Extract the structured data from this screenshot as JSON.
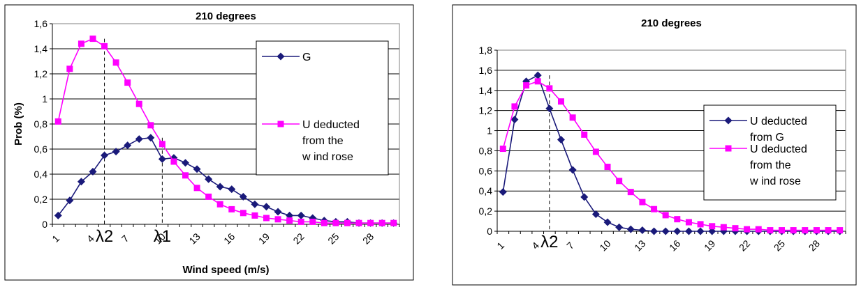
{
  "chart_data": [
    {
      "type": "line",
      "title": "210 degrees",
      "xlabel": "Wind speed (m/s)",
      "ylabel": "Prob (%)",
      "ylim": [
        0,
        1.6
      ],
      "y_ticks": [
        "0",
        "0,2",
        "0,4",
        "0,6",
        "0,8",
        "1",
        "1,2",
        "1,4",
        "1,6"
      ],
      "x_tick_labels": [
        "1",
        "4",
        "7",
        "10",
        "13",
        "16",
        "19",
        "22",
        "25",
        "28"
      ],
      "x_tick_values": [
        1,
        4,
        7,
        10,
        13,
        16,
        19,
        22,
        25,
        28
      ],
      "x": [
        1,
        2,
        3,
        4,
        5,
        6,
        7,
        8,
        9,
        10,
        11,
        12,
        13,
        14,
        15,
        16,
        17,
        18,
        19,
        20,
        21,
        22,
        23,
        24,
        25,
        26,
        27,
        28,
        29,
        30
      ],
      "grid": true,
      "legend_position": "right",
      "series": [
        {
          "name": "G",
          "color": "#1a1a7a",
          "marker": "diamond",
          "values": [
            0.07,
            0.19,
            0.34,
            0.42,
            0.55,
            0.58,
            0.63,
            0.68,
            0.69,
            0.52,
            0.53,
            0.49,
            0.44,
            0.36,
            0.3,
            0.28,
            0.22,
            0.16,
            0.14,
            0.1,
            0.07,
            0.07,
            0.05,
            0.03,
            0.02,
            0.02,
            0.01,
            0.01,
            0.01,
            0.01
          ]
        },
        {
          "name": "U deducted from the wind rose",
          "legend_lines": [
            "U deducted",
            "from the",
            "w ind rose"
          ],
          "color": "#ff00ff",
          "marker": "square",
          "values": [
            0.82,
            1.24,
            1.44,
            1.48,
            1.42,
            1.29,
            1.13,
            0.96,
            0.79,
            0.64,
            0.5,
            0.39,
            0.29,
            0.22,
            0.16,
            0.12,
            0.09,
            0.07,
            0.05,
            0.04,
            0.03,
            0.02,
            0.02,
            0.01,
            0.01,
            0.01,
            0.01,
            0.01,
            0.01,
            0.01
          ]
        }
      ],
      "annotations": [
        {
          "label": "λ2",
          "x": 5,
          "y": 1.48
        },
        {
          "label": "λ1",
          "x": 10,
          "y": 0.69
        }
      ]
    },
    {
      "type": "line",
      "title": "210 degrees",
      "xlabel": "",
      "ylabel": "",
      "ylim": [
        0,
        1.8
      ],
      "y_ticks": [
        "0",
        "0,2",
        "0,4",
        "0,6",
        "0,8",
        "1",
        "1,2",
        "1,4",
        "1,6",
        "1,8"
      ],
      "x_tick_labels": [
        "1",
        "4",
        "7",
        "10",
        "13",
        "16",
        "19",
        "22",
        "25",
        "28"
      ],
      "x_tick_values": [
        1,
        4,
        7,
        10,
        13,
        16,
        19,
        22,
        25,
        28
      ],
      "x": [
        1,
        2,
        3,
        4,
        5,
        6,
        7,
        8,
        9,
        10,
        11,
        12,
        13,
        14,
        15,
        16,
        17,
        18,
        19,
        20,
        21,
        22,
        23,
        24,
        25,
        26,
        27,
        28,
        29,
        30
      ],
      "grid": true,
      "legend_position": "right",
      "series": [
        {
          "name": "U deducted from G",
          "legend_lines": [
            "U deducted",
            "from G"
          ],
          "color": "#1a1a7a",
          "marker": "diamond",
          "values": [
            0.39,
            1.11,
            1.49,
            1.55,
            1.22,
            0.91,
            0.61,
            0.34,
            0.17,
            0.09,
            0.04,
            0.02,
            0.01,
            0.0,
            0.0,
            0.0,
            0.0,
            0.0,
            0.0,
            0.0,
            0.0,
            0.0,
            0.0,
            0.0,
            0.0,
            0.0,
            0.0,
            0.0,
            0.0,
            0.0
          ]
        },
        {
          "name": "U deducted from the wind rose",
          "legend_lines": [
            "U deducted",
            "from the",
            "w ind rose"
          ],
          "color": "#ff00ff",
          "marker": "square",
          "values": [
            0.82,
            1.24,
            1.45,
            1.49,
            1.42,
            1.29,
            1.13,
            0.96,
            0.79,
            0.64,
            0.5,
            0.39,
            0.29,
            0.22,
            0.16,
            0.12,
            0.09,
            0.07,
            0.05,
            0.04,
            0.03,
            0.02,
            0.02,
            0.01,
            0.01,
            0.01,
            0.01,
            0.01,
            0.01,
            0.01
          ]
        }
      ],
      "annotations": [
        {
          "label": "λ2",
          "x": 5,
          "y": 1.55
        }
      ]
    }
  ]
}
